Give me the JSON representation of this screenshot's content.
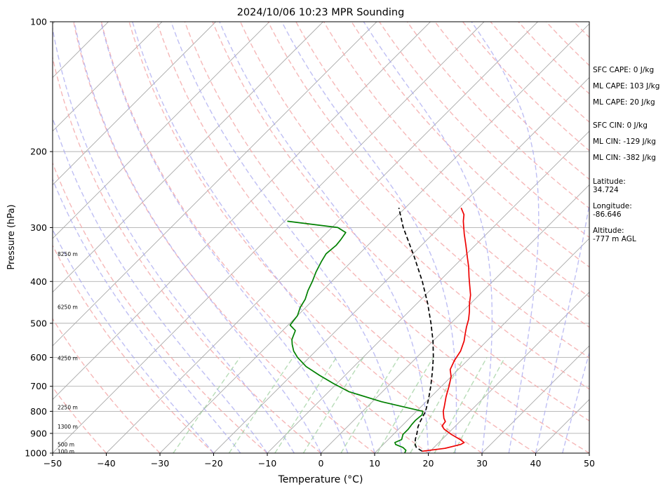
{
  "chart_data": {
    "type": "line",
    "title": "2024/10/06 10:23 MPR Sounding",
    "xlabel": "Temperature (°C)",
    "ylabel": "Pressure (hPa)",
    "xlim": [
      -50,
      50
    ],
    "ylim": [
      1000,
      100
    ],
    "y_scale": "log",
    "skew": "skew-T log-P",
    "x_ticks": [
      "−50",
      "−40",
      "−30",
      "−20",
      "−10",
      "0",
      "10",
      "20",
      "30",
      "40",
      "50"
    ],
    "y_ticks": [
      "1000",
      "900",
      "800",
      "700",
      "600",
      "500",
      "400",
      "300",
      "200",
      "100"
    ],
    "grid": true,
    "height_labels": [
      {
        "p": 990,
        "label": "100 m"
      },
      {
        "p": 955,
        "label": "500 m"
      },
      {
        "p": 868,
        "label": "1300 m"
      },
      {
        "p": 782,
        "label": "2250 m"
      },
      {
        "p": 602,
        "label": "4250 m"
      },
      {
        "p": 458,
        "label": "6250 m"
      },
      {
        "p": 345,
        "label": "8250 m"
      }
    ],
    "series": [
      {
        "role": "temperature",
        "color": "#ee0000",
        "points": [
          [
            990,
            18.5
          ],
          [
            975,
            22.2
          ],
          [
            955,
            24.4
          ],
          [
            945,
            24.7
          ],
          [
            930,
            23.4
          ],
          [
            905,
            20.8
          ],
          [
            880,
            18.5
          ],
          [
            865,
            17.5
          ],
          [
            845,
            17.3
          ],
          [
            830,
            16.4
          ],
          [
            800,
            15.0
          ],
          [
            780,
            14.3
          ],
          [
            740,
            12.8
          ],
          [
            700,
            11.4
          ],
          [
            665,
            10.0
          ],
          [
            640,
            8.5
          ],
          [
            610,
            7.6
          ],
          [
            580,
            7.0
          ],
          [
            550,
            5.8
          ],
          [
            530,
            4.7
          ],
          [
            510,
            3.6
          ],
          [
            490,
            2.6
          ],
          [
            470,
            1.3
          ],
          [
            450,
            -0.2
          ],
          [
            430,
            -1.6
          ],
          [
            410,
            -3.4
          ],
          [
            390,
            -5.3
          ],
          [
            370,
            -7.2
          ],
          [
            350,
            -9.4
          ],
          [
            330,
            -11.7
          ],
          [
            310,
            -14.2
          ],
          [
            290,
            -16.7
          ],
          [
            280,
            -17.8
          ],
          [
            270,
            -19.6
          ]
        ]
      },
      {
        "role": "dewpoint",
        "color": "#008000",
        "points": [
          [
            1000,
            15.6
          ],
          [
            985,
            15.3
          ],
          [
            970,
            14.2
          ],
          [
            955,
            12.3
          ],
          [
            945,
            11.8
          ],
          [
            930,
            12.5
          ],
          [
            905,
            11.8
          ],
          [
            880,
            11.8
          ],
          [
            860,
            11.6
          ],
          [
            840,
            11.5
          ],
          [
            815,
            11.7
          ],
          [
            800,
            11.2
          ],
          [
            760,
            1.7
          ],
          [
            720,
            -6.3
          ],
          [
            690,
            -10.6
          ],
          [
            660,
            -14.8
          ],
          [
            630,
            -18.9
          ],
          [
            600,
            -22.2
          ],
          [
            580,
            -24.1
          ],
          [
            560,
            -25.6
          ],
          [
            545,
            -26.6
          ],
          [
            520,
            -27.6
          ],
          [
            505,
            -29.6
          ],
          [
            480,
            -30.0
          ],
          [
            460,
            -31.0
          ],
          [
            440,
            -31.6
          ],
          [
            420,
            -32.7
          ],
          [
            400,
            -33.6
          ],
          [
            380,
            -34.7
          ],
          [
            360,
            -35.6
          ],
          [
            345,
            -36.2
          ],
          [
            330,
            -35.9
          ],
          [
            320,
            -36.1
          ],
          [
            308,
            -36.5
          ],
          [
            300,
            -38.9
          ],
          [
            290,
            -49.5
          ]
        ]
      },
      {
        "role": "parcel",
        "color": "#000000",
        "dashed": true,
        "points": [
          [
            990,
            18.5
          ],
          [
            970,
            16.7
          ],
          [
            950,
            15.7
          ],
          [
            925,
            14.9
          ],
          [
            900,
            14.2
          ],
          [
            870,
            13.2
          ],
          [
            850,
            12.7
          ],
          [
            800,
            11.7
          ],
          [
            750,
            10.0
          ],
          [
            700,
            8.0
          ],
          [
            650,
            5.7
          ],
          [
            600,
            3.1
          ],
          [
            550,
            0.0
          ],
          [
            500,
            -3.7
          ],
          [
            450,
            -8.0
          ],
          [
            400,
            -13.1
          ],
          [
            350,
            -19.3
          ],
          [
            300,
            -26.7
          ],
          [
            270,
            -31.2
          ]
        ]
      }
    ]
  },
  "side_panel": {
    "entries": [
      {
        "y": 103,
        "text": "SFC CAPE: 0 J/kg"
      },
      {
        "y": 126,
        "text": "ML CAPE: 103 J/kg"
      },
      {
        "y": 149,
        "text": "ML CAPE: 20 J/kg"
      },
      {
        "y": 182,
        "text": "SFC CIN: 0 J/kg"
      },
      {
        "y": 205,
        "text": "ML CIN: -129 J/kg"
      },
      {
        "y": 228,
        "text": "ML CIN: -382 J/kg"
      },
      {
        "y": 262,
        "text": "Latitude:\n34.724"
      },
      {
        "y": 297,
        "text": "Longitude:\n-86.646"
      },
      {
        "y": 332,
        "text": "Altitude:\n-777 m AGL"
      }
    ]
  }
}
